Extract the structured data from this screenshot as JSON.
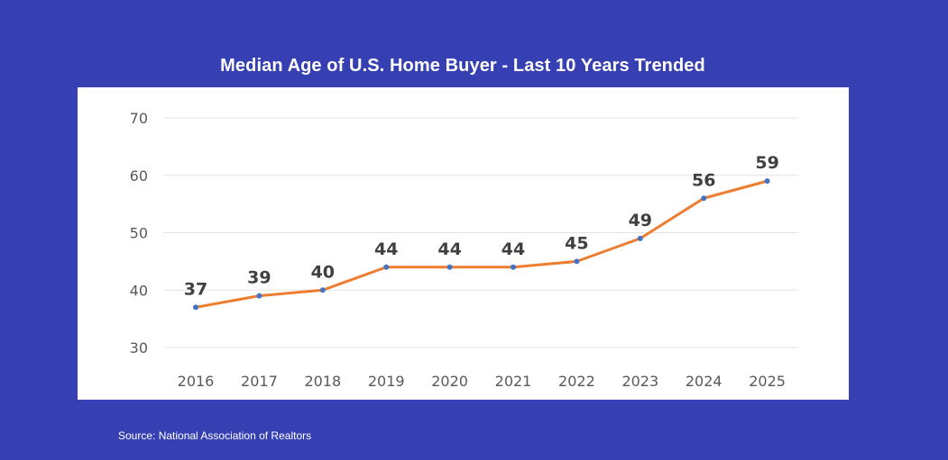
{
  "title": "Median Age of U.S. Home Buyer - Last 10 Years Trended",
  "source": "Source: National Association of Realtors",
  "colors": {
    "background": "#3640b3",
    "panel": "#ffffff",
    "line": "#ed7d31",
    "marker": "#4472c4",
    "gridline": "#e3e3e3",
    "tick_text": "#595959",
    "data_label": "#404040"
  },
  "chart_data": {
    "type": "line",
    "title": "Median Age of U.S. Home Buyer - Last 10 Years Trended",
    "xlabel": "",
    "ylabel": "",
    "categories": [
      "2016",
      "2017",
      "2018",
      "2019",
      "2020",
      "2021",
      "2022",
      "2023",
      "2024",
      "2025"
    ],
    "series": [
      {
        "name": "Median Age",
        "values": [
          37,
          39,
          40,
          44,
          44,
          44,
          45,
          49,
          56,
          59
        ]
      }
    ],
    "ylim": [
      30,
      70
    ],
    "yticks": [
      30,
      40,
      50,
      60,
      70
    ],
    "grid": true,
    "legend": "none",
    "data_labels": true
  }
}
